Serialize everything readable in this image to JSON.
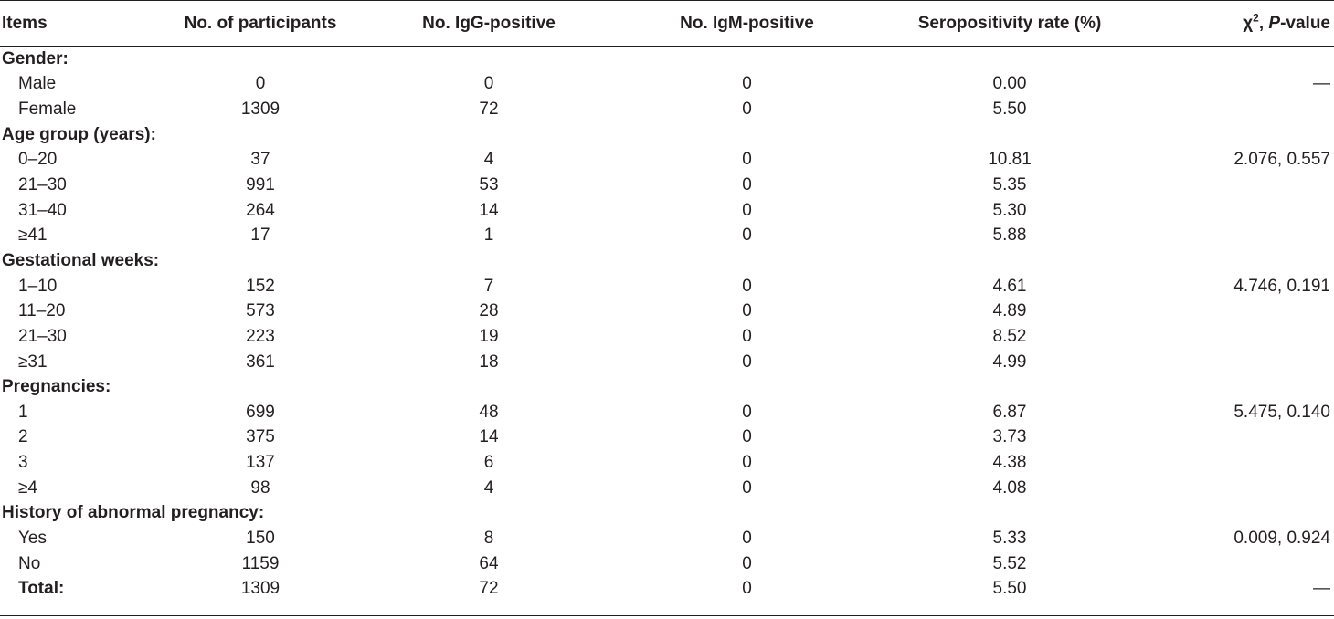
{
  "header": {
    "items": "Items",
    "participants": "No. of participants",
    "igg": "No. IgG-positive",
    "igm": "No. IgM-positive",
    "rate": "Seropositivity rate (%)",
    "chi_symbol": "χ",
    "chi_sup": "2",
    "chi_sep": ", ",
    "p_italic": "P",
    "p_rest": "-value"
  },
  "groups": [
    {
      "title": "Gender:",
      "rows": [
        {
          "label": "Male",
          "participants": "0",
          "igg": "0",
          "igm": "0",
          "rate": "0.00",
          "stat": "—"
        },
        {
          "label": "Female",
          "participants": "1309",
          "igg": "72",
          "igm": "0",
          "rate": "5.50",
          "stat": ""
        }
      ]
    },
    {
      "title": "Age group (years):",
      "rows": [
        {
          "label": "0–20",
          "participants": "37",
          "igg": "4",
          "igm": "0",
          "rate": "10.81",
          "stat": "2.076, 0.557"
        },
        {
          "label": "21–30",
          "participants": "991",
          "igg": "53",
          "igm": "0",
          "rate": "5.35",
          "stat": ""
        },
        {
          "label": "31–40",
          "participants": "264",
          "igg": "14",
          "igm": "0",
          "rate": "5.30",
          "stat": ""
        },
        {
          "label": "≥41",
          "participants": "17",
          "igg": "1",
          "igm": "0",
          "rate": "5.88",
          "stat": ""
        }
      ]
    },
    {
      "title": "Gestational weeks:",
      "rows": [
        {
          "label": "1–10",
          "participants": "152",
          "igg": "7",
          "igm": "0",
          "rate": "4.61",
          "stat": "4.746, 0.191"
        },
        {
          "label": "11–20",
          "participants": "573",
          "igg": "28",
          "igm": "0",
          "rate": "4.89",
          "stat": ""
        },
        {
          "label": "21–30",
          "participants": "223",
          "igg": "19",
          "igm": "0",
          "rate": "8.52",
          "stat": ""
        },
        {
          "label": "≥31",
          "participants": "361",
          "igg": "18",
          "igm": "0",
          "rate": "4.99",
          "stat": ""
        }
      ]
    },
    {
      "title": "Pregnancies:",
      "rows": [
        {
          "label": "1",
          "participants": "699",
          "igg": "48",
          "igm": "0",
          "rate": "6.87",
          "stat": "5.475, 0.140"
        },
        {
          "label": "2",
          "participants": "375",
          "igg": "14",
          "igm": "0",
          "rate": "3.73",
          "stat": ""
        },
        {
          "label": "3",
          "participants": "137",
          "igg": "6",
          "igm": "0",
          "rate": "4.38",
          "stat": ""
        },
        {
          "label": "≥4",
          "participants": "98",
          "igg": "4",
          "igm": "0",
          "rate": "4.08",
          "stat": ""
        }
      ]
    },
    {
      "title": "History of abnormal pregnancy:",
      "rows": [
        {
          "label": "Yes",
          "participants": "150",
          "igg": "8",
          "igm": "0",
          "rate": "5.33",
          "stat": "0.009, 0.924"
        },
        {
          "label": "No",
          "participants": "1159",
          "igg": "64",
          "igm": "0",
          "rate": "5.52",
          "stat": ""
        }
      ]
    }
  ],
  "total": {
    "label": "Total:",
    "participants": "1309",
    "igg": "72",
    "igm": "0",
    "rate": "5.50",
    "stat": "—"
  }
}
